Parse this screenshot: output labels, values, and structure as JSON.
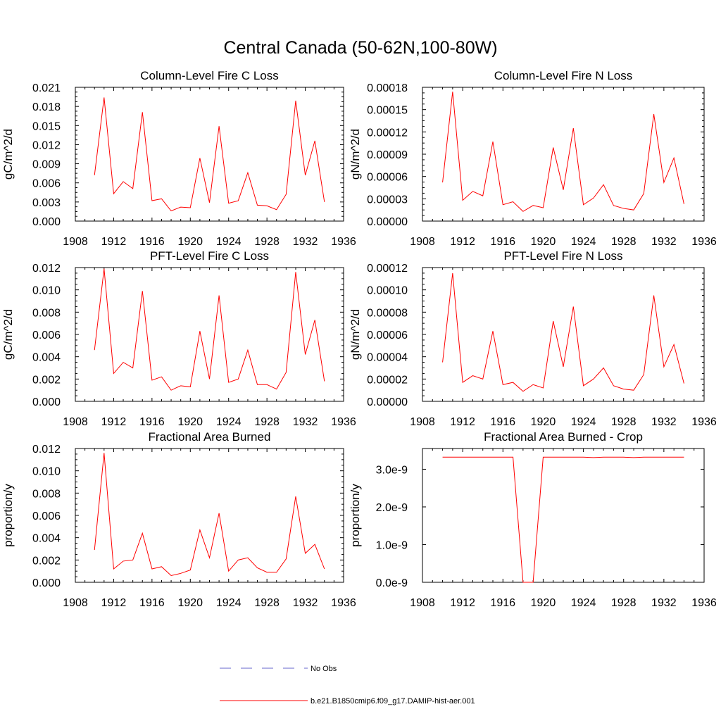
{
  "title": "Central Canada (50-62N,100-80W)",
  "chart_data": [
    {
      "type": "line",
      "title": "Column-Level Fire C Loss",
      "ylabel": "gC/m^2/d",
      "xlim": [
        1908,
        1936
      ],
      "xticks": [
        1908,
        1912,
        1916,
        1920,
        1924,
        1928,
        1932,
        1936
      ],
      "ylim": [
        0,
        0.021
      ],
      "yticks": [
        "0.000",
        "0.003",
        "0.006",
        "0.009",
        "0.012",
        "0.015",
        "0.018",
        "0.021"
      ],
      "x": [
        1910,
        1911,
        1912,
        1913,
        1914,
        1915,
        1916,
        1917,
        1918,
        1919,
        1920,
        1921,
        1922,
        1923,
        1924,
        1925,
        1926,
        1927,
        1928,
        1929,
        1930,
        1931,
        1932,
        1933,
        1934
      ],
      "series": [
        {
          "name": "b.e21.B1850cmip6.f09_g17.DAMIP-hist-aer.001",
          "color": "#ff0000",
          "values": [
            0.0072,
            0.0194,
            0.0043,
            0.0062,
            0.0051,
            0.0171,
            0.0032,
            0.0035,
            0.0016,
            0.0022,
            0.0021,
            0.0099,
            0.0029,
            0.0149,
            0.0028,
            0.0032,
            0.0076,
            0.0025,
            0.0024,
            0.0018,
            0.0042,
            0.0189,
            0.0072,
            0.0126,
            0.003
          ]
        }
      ]
    },
    {
      "type": "line",
      "title": "Column-Level Fire N Loss",
      "ylabel": "gN/m^2/d",
      "xlim": [
        1908,
        1936
      ],
      "xticks": [
        1908,
        1912,
        1916,
        1920,
        1924,
        1928,
        1932,
        1936
      ],
      "ylim": [
        0,
        0.00018
      ],
      "yticks": [
        "0.00000",
        "0.00003",
        "0.00006",
        "0.00009",
        "0.00012",
        "0.00015",
        "0.00018"
      ],
      "x": [
        1910,
        1911,
        1912,
        1913,
        1914,
        1915,
        1916,
        1917,
        1918,
        1919,
        1920,
        1921,
        1922,
        1923,
        1924,
        1925,
        1926,
        1927,
        1928,
        1929,
        1930,
        1931,
        1932,
        1933,
        1934
      ],
      "series": [
        {
          "name": "b.e21.B1850cmip6.f09_g17.DAMIP-hist-aer.001",
          "color": "#ff0000",
          "values": [
            5.2e-05,
            0.000174,
            2.8e-05,
            4e-05,
            3.4e-05,
            0.000107,
            2.2e-05,
            2.6e-05,
            1.3e-05,
            2.1e-05,
            1.8e-05,
            9.9e-05,
            4.2e-05,
            0.000125,
            2.2e-05,
            3.1e-05,
            4.9e-05,
            2.1e-05,
            1.7e-05,
            1.5e-05,
            3.7e-05,
            0.000144,
            5.2e-05,
            8.5e-05,
            2.3e-05
          ]
        }
      ]
    },
    {
      "type": "line",
      "title": "PFT-Level Fire C Loss",
      "ylabel": "gC/m^2/d",
      "xlim": [
        1908,
        1936
      ],
      "xticks": [
        1908,
        1912,
        1916,
        1920,
        1924,
        1928,
        1932,
        1936
      ],
      "ylim": [
        0,
        0.012
      ],
      "yticks": [
        "0.000",
        "0.002",
        "0.004",
        "0.006",
        "0.008",
        "0.010",
        "0.012"
      ],
      "x": [
        1910,
        1911,
        1912,
        1913,
        1914,
        1915,
        1916,
        1917,
        1918,
        1919,
        1920,
        1921,
        1922,
        1923,
        1924,
        1925,
        1926,
        1927,
        1928,
        1929,
        1930,
        1931,
        1932,
        1933,
        1934
      ],
      "series": [
        {
          "name": "b.e21.B1850cmip6.f09_g17.DAMIP-hist-aer.001",
          "color": "#ff0000",
          "values": [
            0.0046,
            0.0119,
            0.0025,
            0.0035,
            0.003,
            0.0099,
            0.0019,
            0.0022,
            0.001,
            0.0014,
            0.0013,
            0.0063,
            0.002,
            0.0095,
            0.0017,
            0.002,
            0.0046,
            0.0015,
            0.0015,
            0.0011,
            0.0026,
            0.0116,
            0.0042,
            0.0073,
            0.0018
          ]
        }
      ]
    },
    {
      "type": "line",
      "title": "PFT-Level Fire N Loss",
      "ylabel": "gN/m^2/d",
      "xlim": [
        1908,
        1936
      ],
      "xticks": [
        1908,
        1912,
        1916,
        1920,
        1924,
        1928,
        1932,
        1936
      ],
      "ylim": [
        0,
        0.00012
      ],
      "yticks": [
        "0.00000",
        "0.00002",
        "0.00004",
        "0.00006",
        "0.00008",
        "0.00010",
        "0.00012"
      ],
      "x": [
        1910,
        1911,
        1912,
        1913,
        1914,
        1915,
        1916,
        1917,
        1918,
        1919,
        1920,
        1921,
        1922,
        1923,
        1924,
        1925,
        1926,
        1927,
        1928,
        1929,
        1930,
        1931,
        1932,
        1933,
        1934
      ],
      "series": [
        {
          "name": "b.e21.B1850cmip6.f09_g17.DAMIP-hist-aer.001",
          "color": "#ff0000",
          "values": [
            3.5e-05,
            0.000115,
            1.7e-05,
            2.3e-05,
            2e-05,
            6.3e-05,
            1.5e-05,
            1.7e-05,
            9e-06,
            1.5e-05,
            1.2e-05,
            7.2e-05,
            3.1e-05,
            8.5e-05,
            1.4e-05,
            2e-05,
            3e-05,
            1.4e-05,
            1.1e-05,
            1e-05,
            2.4e-05,
            9.5e-05,
            3.1e-05,
            5.1e-05,
            1.6e-05
          ]
        }
      ]
    },
    {
      "type": "line",
      "title": "Fractional Area Burned",
      "ylabel": "proportion/y",
      "xlim": [
        1908,
        1936
      ],
      "xticks": [
        1908,
        1912,
        1916,
        1920,
        1924,
        1928,
        1932,
        1936
      ],
      "ylim": [
        0,
        0.012
      ],
      "yticks": [
        "0.000",
        "0.002",
        "0.004",
        "0.006",
        "0.008",
        "0.010",
        "0.012"
      ],
      "x": [
        1910,
        1911,
        1912,
        1913,
        1914,
        1915,
        1916,
        1917,
        1918,
        1919,
        1920,
        1921,
        1922,
        1923,
        1924,
        1925,
        1926,
        1927,
        1928,
        1929,
        1930,
        1931,
        1932,
        1933,
        1934
      ],
      "series": [
        {
          "name": "b.e21.B1850cmip6.f09_g17.DAMIP-hist-aer.001",
          "color": "#ff0000",
          "values": [
            0.0029,
            0.0116,
            0.0012,
            0.0019,
            0.002,
            0.0044,
            0.0012,
            0.0014,
            0.0006,
            0.0008,
            0.0011,
            0.0047,
            0.0022,
            0.0062,
            0.001,
            0.002,
            0.0022,
            0.0013,
            0.0009,
            0.0009,
            0.0021,
            0.0077,
            0.0026,
            0.0034,
            0.0012
          ]
        }
      ]
    },
    {
      "type": "line",
      "title": "Fractional Area Burned - Crop",
      "ylabel": "proportion/y",
      "xlim": [
        1908,
        1936
      ],
      "xticks": [
        1908,
        1912,
        1916,
        1920,
        1924,
        1928,
        1932,
        1936
      ],
      "ylim": [
        0,
        3.55e-09
      ],
      "yticks": [
        "0.0e-9",
        "1.0e-9",
        "2.0e-9",
        "3.0e-9"
      ],
      "ytick_values": [
        0,
        1e-09,
        2e-09,
        3e-09
      ],
      "x": [
        1910,
        1911,
        1912,
        1913,
        1914,
        1915,
        1916,
        1917,
        1918,
        1919,
        1920,
        1921,
        1922,
        1923,
        1924,
        1925,
        1926,
        1927,
        1928,
        1929,
        1930,
        1931,
        1932,
        1933,
        1934
      ],
      "series": [
        {
          "name": "b.e21.B1850cmip6.f09_g17.DAMIP-hist-aer.001",
          "color": "#ff0000",
          "values": [
            3.32e-09,
            3.32e-09,
            3.32e-09,
            3.32e-09,
            3.32e-09,
            3.32e-09,
            3.32e-09,
            3.32e-09,
            0,
            0,
            3.32e-09,
            3.32e-09,
            3.32e-09,
            3.32e-09,
            3.32e-09,
            3.31e-09,
            3.32e-09,
            3.32e-09,
            3.32e-09,
            3.31e-09,
            3.32e-09,
            3.32e-09,
            3.32e-09,
            3.32e-09,
            3.32e-09
          ]
        }
      ]
    }
  ],
  "legend": [
    {
      "label": "No Obs",
      "style": "dashed",
      "color": "#6666cc"
    },
    {
      "label": "b.e21.B1850cmip6.f09_g17.DAMIP-hist-aer.001",
      "style": "solid",
      "color": "#ff0000"
    }
  ]
}
